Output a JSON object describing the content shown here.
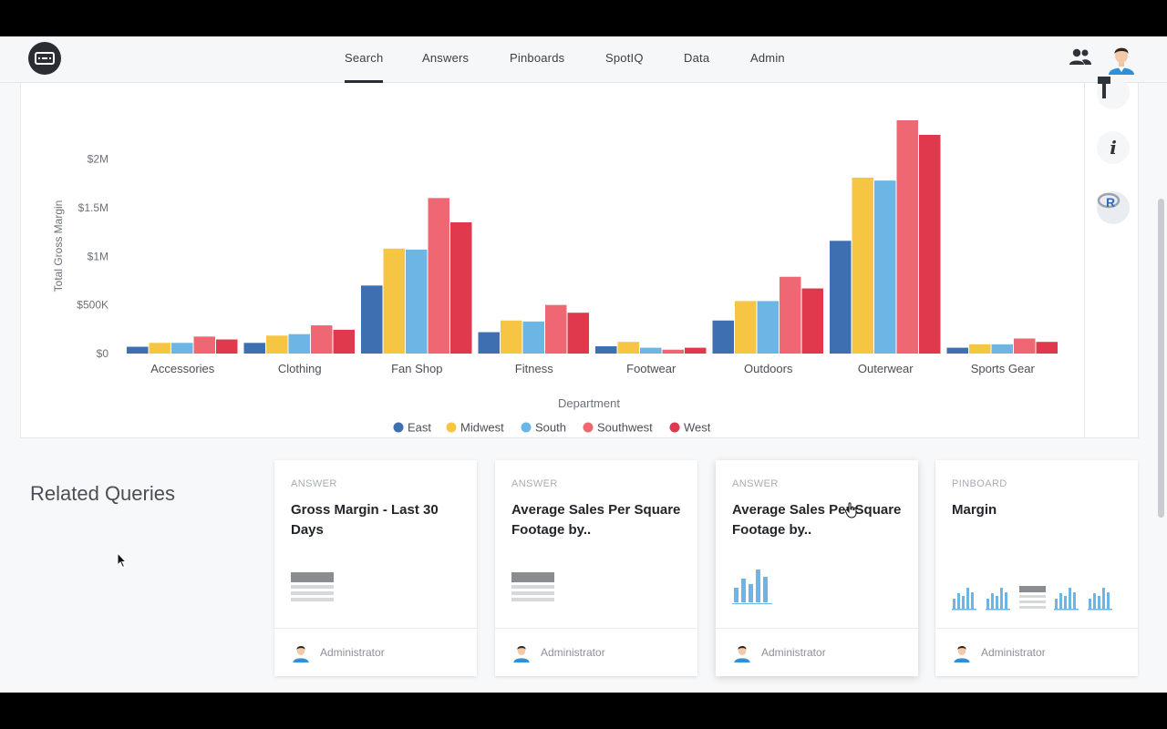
{
  "nav": {
    "items": [
      "Search",
      "Answers",
      "Pinboards",
      "SpotIQ",
      "Data",
      "Admin"
    ],
    "active": "Search"
  },
  "colors": {
    "east": "#3e6fb0",
    "midwest": "#f7c544",
    "south": "#6cb6e6",
    "southwest": "#f06774",
    "west": "#e0384d",
    "accent": "#2a2d33"
  },
  "chart_data": {
    "type": "bar",
    "ylabel": "Total Gross Margin",
    "xlabel": "Department",
    "y_ticks": [
      {
        "label": "$0",
        "value": 0
      },
      {
        "label": "$500K",
        "value": 500000
      },
      {
        "label": "$1M",
        "value": 1000000
      },
      {
        "label": "$1.5M",
        "value": 1500000
      },
      {
        "label": "$2M",
        "value": 2000000
      }
    ],
    "ylim": [
      0,
      2400000
    ],
    "grid": false,
    "legend": "bottom-center",
    "categories": [
      "Accessories",
      "Clothing",
      "Fan Shop",
      "Fitness",
      "Footwear",
      "Outdoors",
      "Outerwear",
      "Sports Gear"
    ],
    "series": [
      {
        "name": "East",
        "color": "#3e6fb0",
        "values": [
          70000,
          110000,
          700000,
          220000,
          75000,
          340000,
          1160000,
          60000
        ]
      },
      {
        "name": "Midwest",
        "color": "#f7c544",
        "values": [
          110000,
          185000,
          1080000,
          340000,
          120000,
          540000,
          1810000,
          95000
        ]
      },
      {
        "name": "South",
        "color": "#6cb6e6",
        "values": [
          110000,
          200000,
          1070000,
          330000,
          60000,
          540000,
          1780000,
          95000
        ]
      },
      {
        "name": "Southwest",
        "color": "#f06774",
        "values": [
          175000,
          290000,
          1600000,
          500000,
          40000,
          790000,
          2400000,
          155000
        ]
      },
      {
        "name": "West",
        "color": "#e0384d",
        "values": [
          145000,
          245000,
          1350000,
          420000,
          60000,
          670000,
          2250000,
          120000
        ]
      }
    ]
  },
  "related": {
    "title": "Related Queries",
    "cards": [
      {
        "type": "ANSWER",
        "title": "Gross Margin - Last 30 Days",
        "viz": "table-icon",
        "author": "Administrator"
      },
      {
        "type": "ANSWER",
        "title": "Average Sales Per Square Footage by..",
        "viz": "table-icon",
        "author": "Administrator"
      },
      {
        "type": "ANSWER",
        "title": "Average Sales Per Square Footage by..",
        "viz": "bar-chart-icon",
        "author": "Administrator"
      },
      {
        "type": "PINBOARD",
        "title": "Margin",
        "viz": "pinboard-thumbnails-icon",
        "author": "Administrator"
      }
    ]
  },
  "tools": [
    "filter-icon",
    "info-icon",
    "r-analysis-icon"
  ]
}
